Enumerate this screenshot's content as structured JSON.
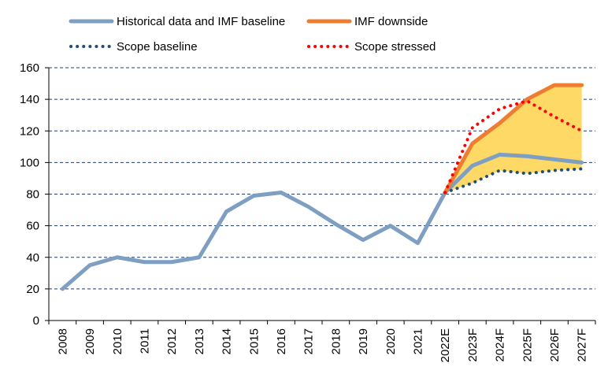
{
  "chart_data": {
    "type": "line",
    "title": "",
    "xlabel": "",
    "ylabel": "",
    "categories": [
      "2008",
      "2009",
      "2010",
      "2011",
      "2012",
      "2013",
      "2014",
      "2015",
      "2016",
      "2017",
      "2018",
      "2019",
      "2020",
      "2021",
      "2022E",
      "2023F",
      "2024F",
      "2025F",
      "2026F",
      "2027F"
    ],
    "ylim": [
      0,
      160
    ],
    "yticks": [
      "0",
      "20",
      "40",
      "60",
      "80",
      "100",
      "120",
      "140",
      "160"
    ],
    "grid": "horizontal dashed",
    "legend_position": "top",
    "series": [
      {
        "name": "Historical data and IMF baseline",
        "color": "#7f9fc2",
        "style": "solid",
        "values": [
          20,
          35,
          40,
          37,
          37,
          40,
          69,
          79,
          81,
          72,
          61,
          51,
          60,
          49,
          81,
          98,
          105,
          104,
          102,
          100
        ]
      },
      {
        "name": "IMF downside",
        "color": "#ed7d31",
        "style": "solid",
        "values": [
          null,
          null,
          null,
          null,
          null,
          null,
          null,
          null,
          null,
          null,
          null,
          null,
          null,
          null,
          81,
          112,
          125,
          140,
          149,
          149
        ]
      },
      {
        "name": "Scope baseline",
        "color": "#1f4e79",
        "style": "dotted",
        "values": [
          null,
          null,
          null,
          null,
          null,
          null,
          null,
          null,
          null,
          null,
          null,
          null,
          null,
          null,
          81,
          87,
          95,
          93,
          95,
          96
        ]
      },
      {
        "name": "Scope stressed",
        "color": "#ff0000",
        "style": "dotted",
        "values": [
          null,
          null,
          null,
          null,
          null,
          null,
          null,
          null,
          null,
          null,
          null,
          null,
          null,
          null,
          81,
          122,
          134,
          139,
          129,
          120
        ]
      }
    ],
    "shaded_band": {
      "color": "#ffd966",
      "lower": [
        81,
        87,
        95,
        93,
        95,
        96
      ],
      "upper": [
        81,
        112,
        125,
        140,
        149,
        149
      ],
      "categories": [
        "2022E",
        "2023F",
        "2024F",
        "2025F",
        "2026F",
        "2027F"
      ]
    }
  }
}
